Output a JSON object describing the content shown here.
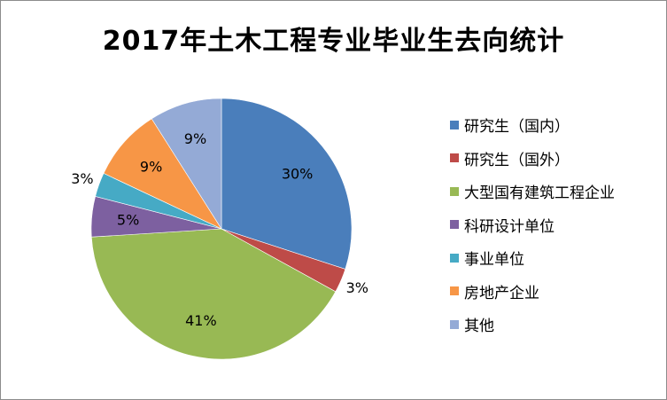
{
  "chart_data": {
    "type": "pie",
    "title": "2017年土木工程专业毕业生去向统计",
    "legend_position": "right",
    "categories": [
      "研究生（国内）",
      "研究生（国外）",
      "大型国有建筑工程企业",
      "科研设计单位",
      "事业单位",
      "房地产企业",
      "其他"
    ],
    "values": [
      30,
      3,
      41,
      5,
      3,
      9,
      9
    ],
    "labels": [
      "30%",
      "3%",
      "41%",
      "5%",
      "3%",
      "9%",
      "9%"
    ],
    "colors": [
      "#4a7ebb",
      "#be4b48",
      "#98b954",
      "#7d60a0",
      "#46aac5",
      "#f79646",
      "#94aad6"
    ]
  }
}
